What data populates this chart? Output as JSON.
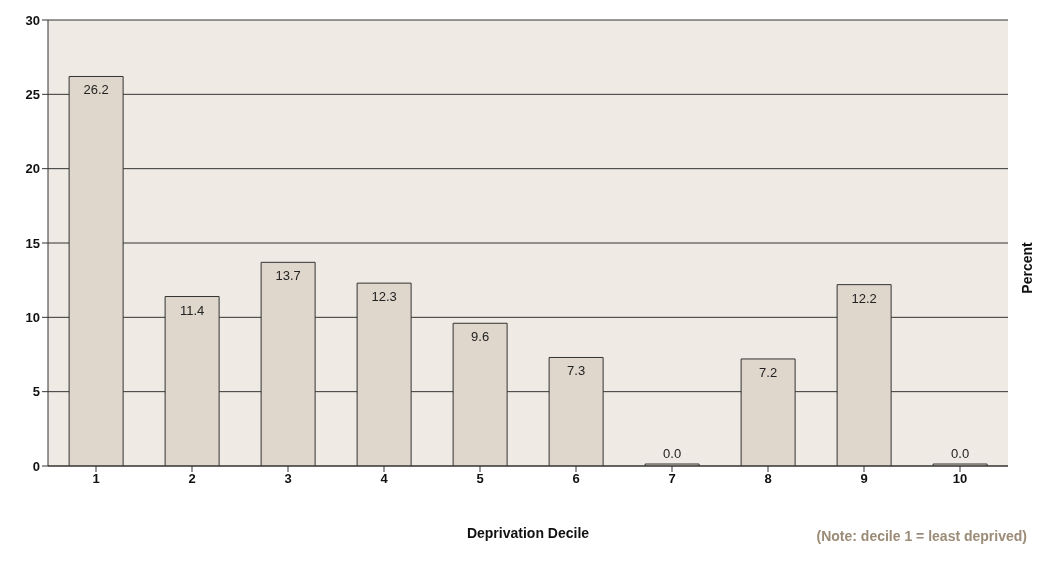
{
  "chart_data": {
    "type": "bar",
    "xlabel": "Deprivation Decile",
    "ylabel": "Percent",
    "categories": [
      "1",
      "2",
      "3",
      "4",
      "5",
      "6",
      "7",
      "8",
      "9",
      "10"
    ],
    "values": [
      26.2,
      11.4,
      13.7,
      12.3,
      9.6,
      7.3,
      0.0,
      7.2,
      12.2,
      0.0
    ],
    "color": "#e0d7cc",
    "ylim": [
      0,
      30
    ],
    "yticks": [
      0,
      5,
      10,
      15,
      20,
      25,
      30
    ],
    "grid": "y",
    "value_labels": [
      "26.2",
      "11.4",
      "13.7",
      "12.3",
      "9.6",
      "7.3",
      "0.0",
      "7.2",
      "12.2",
      "0.0"
    ],
    "annotations": [
      "(Note: decile 1 = least deprived)"
    ]
  }
}
